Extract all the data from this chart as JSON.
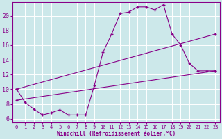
{
  "xlabel": "Windchill (Refroidissement éolien,°C)",
  "background_color": "#cce8ea",
  "grid_color": "#ffffff",
  "line_color": "#880088",
  "xlim": [
    -0.5,
    23.5
  ],
  "ylim": [
    5.5,
    21.8
  ],
  "yticks": [
    6,
    8,
    10,
    12,
    14,
    16,
    18,
    20
  ],
  "xticks": [
    0,
    1,
    2,
    3,
    4,
    5,
    6,
    7,
    8,
    9,
    10,
    11,
    12,
    13,
    14,
    15,
    16,
    17,
    18,
    19,
    20,
    21,
    22,
    23
  ],
  "line1_x": [
    0,
    1,
    2,
    3,
    4,
    5,
    6,
    7,
    8,
    9,
    10,
    11,
    12,
    13,
    14,
    15,
    16,
    17,
    18,
    19,
    20,
    21,
    22,
    23
  ],
  "line1_y": [
    10.0,
    8.2,
    7.3,
    6.5,
    6.8,
    7.2,
    6.5,
    6.5,
    6.5,
    10.5,
    15.0,
    17.5,
    20.3,
    20.5,
    21.2,
    21.2,
    20.8,
    21.5,
    17.5,
    16.0,
    13.5,
    12.5,
    12.5,
    12.5
  ],
  "line2_x": [
    0,
    23
  ],
  "line2_y": [
    8.5,
    12.5
  ],
  "line3_x": [
    0,
    23
  ],
  "line3_y": [
    10.0,
    17.5
  ],
  "line2_mid_x": [
    9
  ],
  "line2_mid_y": [
    10.0
  ],
  "line3_mid_x": [
    18
  ],
  "line3_mid_y": [
    17.5
  ]
}
